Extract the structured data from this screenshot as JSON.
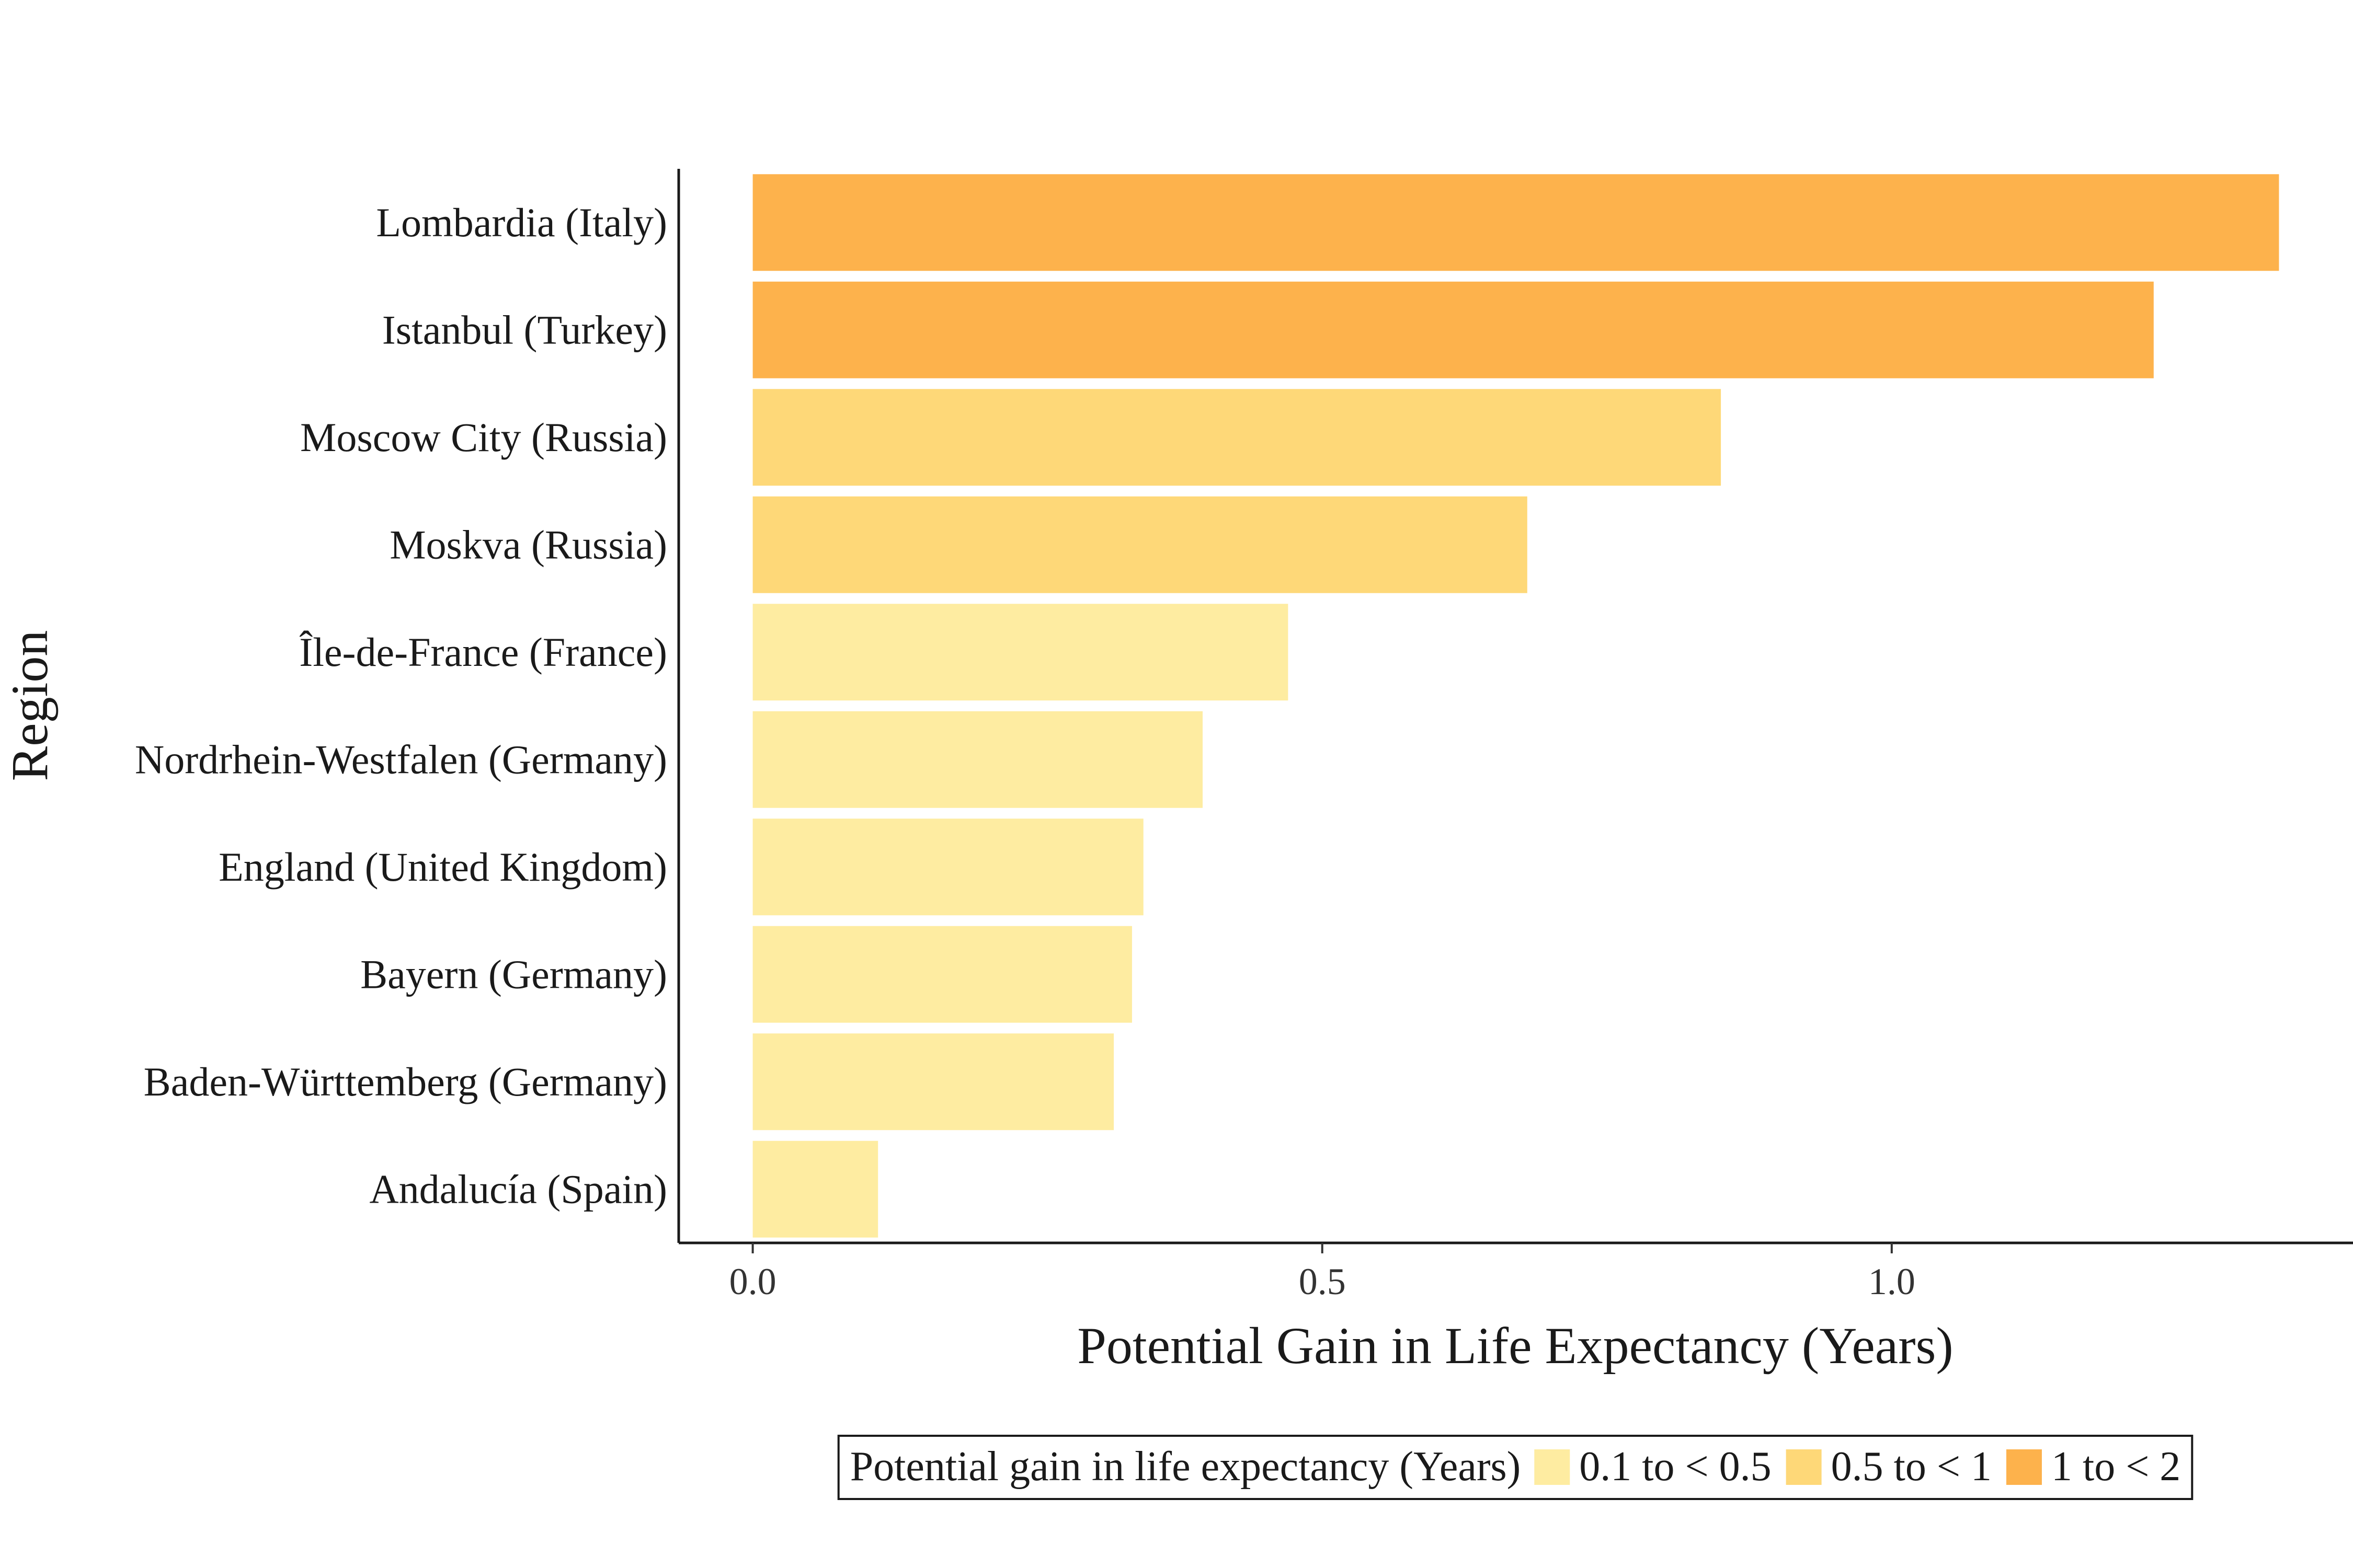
{
  "chart_data": {
    "type": "bar",
    "orientation": "horizontal",
    "categories": [
      "Lombardia (Italy)",
      "Istanbul (Turkey)",
      "Moscow City (Russia)",
      "Moskva (Russia)",
      "Île-de-France (France)",
      "Nordrhein-Westfalen (Germany)",
      "England (United Kingdom)",
      "Bayern (Germany)",
      "Baden-Württemberg (Germany)",
      "Andalucía (Spain)"
    ],
    "values": [
      1.34,
      1.23,
      0.85,
      0.68,
      0.47,
      0.395,
      0.343,
      0.333,
      0.317,
      0.11
    ],
    "value_groups": [
      "1 to < 2",
      "1 to < 2",
      "0.5 to < 1",
      "0.5 to < 1",
      "0.1 to < 0.5",
      "0.1 to < 0.5",
      "0.1 to < 0.5",
      "0.1 to < 0.5",
      "0.1 to < 0.5",
      "0.1 to < 0.5"
    ],
    "xlabel": "Potential Gain in Life Expectancy (Years)",
    "ylabel": "Region",
    "xlim": [
      -0.065,
      1.405
    ],
    "xticks": [
      0.0,
      0.5,
      1.0
    ],
    "xtick_labels": [
      "0.0",
      "0.5",
      "1.0"
    ],
    "grid": false,
    "legend": {
      "title": "Potential gain in life expectancy (Years)",
      "position": "bottom",
      "entries": [
        {
          "label": "0.1 to < 0.5",
          "color": "#FEECA1"
        },
        {
          "label": "0.5 to < 1",
          "color": "#FED878"
        },
        {
          "label": "1 to < 2",
          "color": "#FDB24C"
        }
      ]
    }
  }
}
